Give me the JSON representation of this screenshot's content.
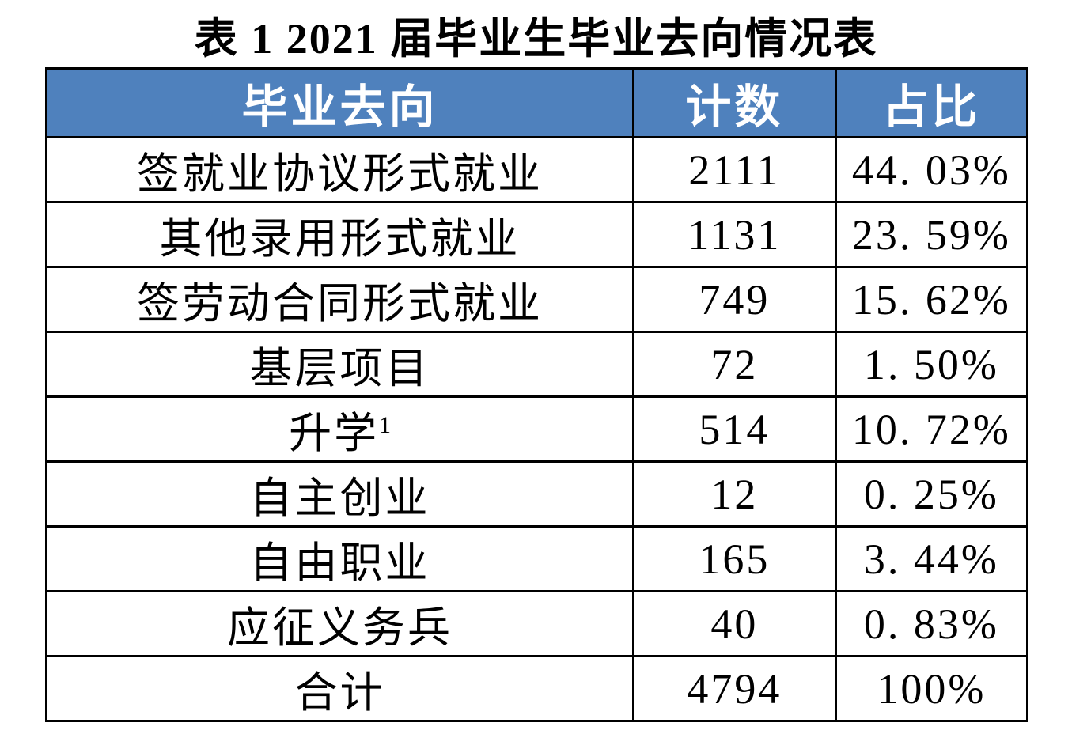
{
  "title": "表 1 2021 届毕业生毕业去向情况表",
  "colors": {
    "header_bg": "#4F81BD",
    "header_text": "#FFFFFF",
    "border": "#000000",
    "body_text": "#000000",
    "page_bg": "#FFFFFF"
  },
  "table": {
    "headers": [
      "毕业去向",
      "计数",
      "占比"
    ],
    "rows": [
      {
        "destination": "签就业协议形式就业",
        "count": "2111",
        "percent": "44. 03%"
      },
      {
        "destination": "其他录用形式就业",
        "count": "1131",
        "percent": "23. 59%"
      },
      {
        "destination": "签劳动合同形式就业",
        "count": "749",
        "percent": "15. 62%"
      },
      {
        "destination": "基层项目",
        "count": "72",
        "percent": "1. 50%"
      },
      {
        "destination": "升学",
        "sup": "1",
        "count": "514",
        "percent": "10. 72%"
      },
      {
        "destination": "自主创业",
        "count": "12",
        "percent": "0. 25%"
      },
      {
        "destination": "自由职业",
        "count": "165",
        "percent": "3. 44%"
      },
      {
        "destination": "应征义务兵",
        "count": "40",
        "percent": "0. 83%"
      },
      {
        "destination": "合计",
        "count": "4794",
        "percent": "100%"
      }
    ]
  },
  "chart_data": {
    "type": "table",
    "title": "表 1 2021 届毕业生毕业去向情况表",
    "columns": [
      "毕业去向",
      "计数",
      "占比"
    ],
    "rows": [
      [
        "签就业协议形式就业",
        2111,
        "44.03%"
      ],
      [
        "其他录用形式就业",
        1131,
        "23.59%"
      ],
      [
        "签劳动合同形式就业",
        749,
        "15.62%"
      ],
      [
        "基层项目",
        72,
        "1.50%"
      ],
      [
        "升学¹",
        514,
        "10.72%"
      ],
      [
        "自主创业",
        12,
        "0.25%"
      ],
      [
        "自由职业",
        165,
        "3.44%"
      ],
      [
        "应征义务兵",
        40,
        "0.83%"
      ],
      [
        "合计",
        4794,
        "100%"
      ]
    ]
  }
}
